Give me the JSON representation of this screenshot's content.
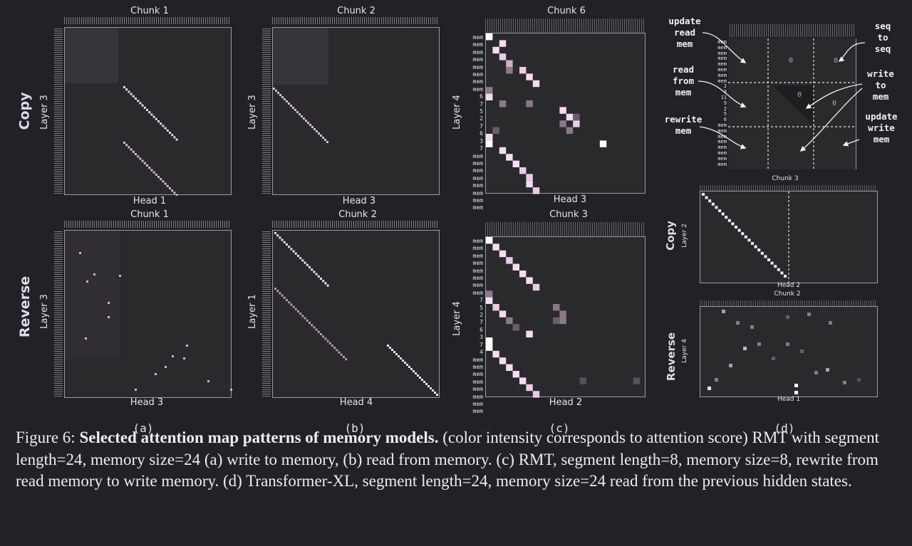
{
  "rows": {
    "copy": "Copy",
    "reverse": "Reverse"
  },
  "panel_a": {
    "top": {
      "chunk": "Chunk 1",
      "layer": "Layer 3",
      "head": "Head 1"
    },
    "bottom": {
      "chunk": "Chunk 1",
      "layer": "Layer 3",
      "head": "Head 3"
    },
    "sublabel": "(a)"
  },
  "panel_b": {
    "top": {
      "chunk": "Chunk 2",
      "layer": "Layer 3",
      "head": "Head 3"
    },
    "bottom": {
      "chunk": "Chunk 2",
      "layer": "Layer 1",
      "head": "Head 4"
    },
    "sublabel": "(b)"
  },
  "panel_c": {
    "top": {
      "chunk": "Chunk 6",
      "layer": "Layer 4",
      "head": "Head 3",
      "row_labels": [
        "mem",
        "mem",
        "mem",
        "mem",
        "mem",
        "mem",
        "mem",
        "mem",
        "6",
        "7",
        "5",
        "2",
        "7",
        "6",
        "3",
        "7",
        "mem",
        "mem",
        "mem",
        "mem",
        "mem",
        "mem",
        "mem",
        "mem"
      ]
    },
    "bottom": {
      "chunk": "Chunk 3",
      "layer": "Layer 4",
      "head": "Head 2",
      "row_labels": [
        "mem",
        "mem",
        "mem",
        "mem",
        "mem",
        "mem",
        "mem",
        "mem",
        "7",
        "5",
        "2",
        "7",
        "6",
        "3",
        "7",
        "4",
        "mem",
        "mem",
        "mem",
        "mem",
        "mem",
        "mem",
        "mem",
        "mem"
      ]
    },
    "sublabel": "(c)"
  },
  "panel_d": {
    "diagram": {
      "labels": {
        "update_read_mem": "update\nread\nmem",
        "read_from_mem": "read\nfrom\nmem",
        "rewrite_mem": "rewrite\nmem",
        "seq_to_seq": "seq\nto\nseq",
        "write_to_mem": "write\nto\nmem",
        "update_write_mem": "update\nwrite\nmem"
      },
      "zero": "0",
      "row_labels": [
        "mem",
        "mem",
        "mem",
        "mem",
        "mem",
        "mem",
        "mem",
        "mem",
        "2",
        "3",
        "11",
        "9",
        "2",
        "5",
        "6",
        "mem",
        "mem",
        "mem",
        "mem",
        "mem",
        "mem",
        "mem",
        "mem"
      ]
    },
    "copy": {
      "chunk": "Chunk 3",
      "layer": "Layer 2",
      "head": "Head 2",
      "task": "Copy"
    },
    "reverse": {
      "chunk": "Chunk 2",
      "layer": "Layer 4",
      "head": "Head 1",
      "task": "Reverse"
    },
    "sublabel": "(d)"
  },
  "caption": {
    "prefix": "Figure 6:",
    "bold": "Selected attention map patterns of memory models.",
    "body": "(color intensity corresponds to attention score) RMT with segment length=24, memory size=24 (a) write to memory, (b) read from memory. (c) RMT, segment length=8, memory size=8, rewrite from read memory to write memory. (d) Transformer-XL, segment length=24, memory size=24 read from the previous hidden states."
  },
  "colors": {
    "background": "#202225",
    "map_bg": "#2a2a2d",
    "bright_cell": "#f4dcf2",
    "mid_cell": "#8a7a88",
    "dark_cell": "#4a4548"
  }
}
